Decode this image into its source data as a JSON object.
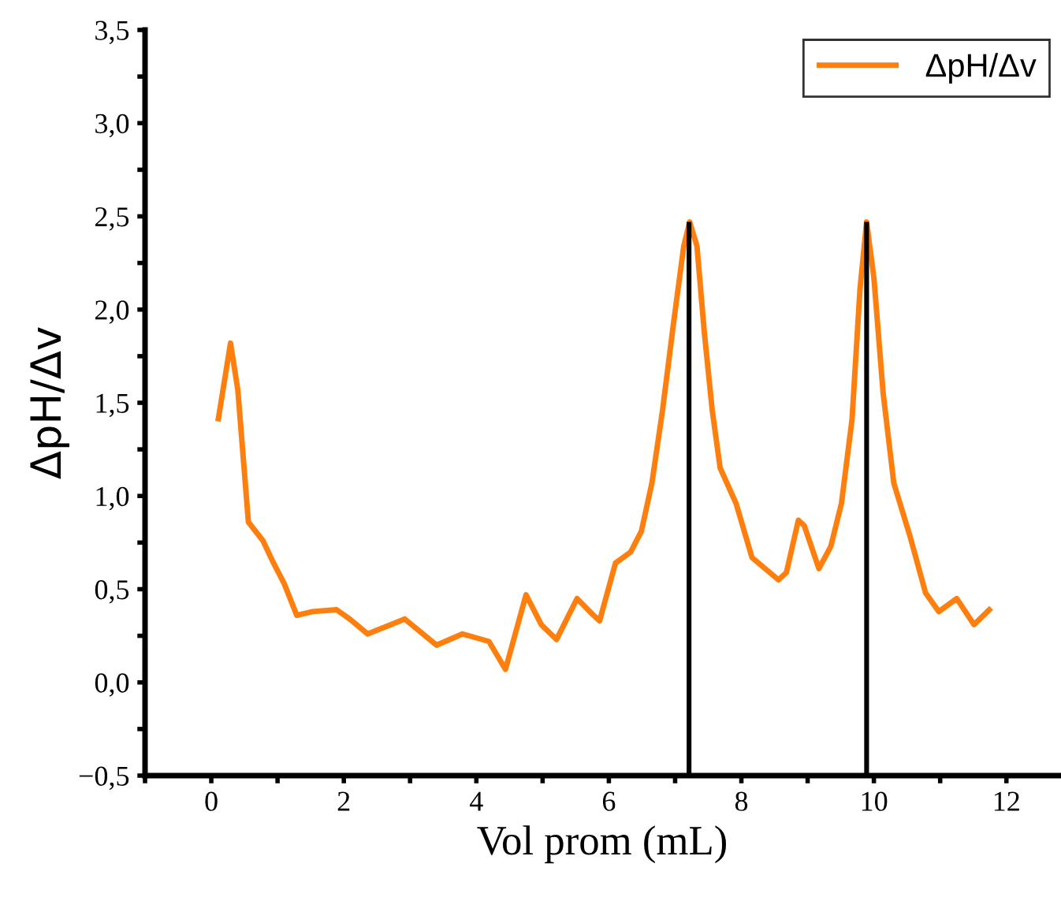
{
  "chart_data": {
    "type": "line",
    "xlabel": "Vol prom (mL)",
    "ylabel": "ΔpH/Δv",
    "legend": "top right",
    "grid": false,
    "xlim": [
      -1,
      12.8
    ],
    "ylim": [
      -0.5,
      3.5
    ],
    "xticks": [
      {
        "value": -1,
        "label": null
      },
      0,
      {
        "value": 1,
        "label": null
      },
      2,
      {
        "value": 3,
        "label": null
      },
      4,
      {
        "value": 5,
        "label": null
      },
      6,
      {
        "value": 7,
        "label": null
      },
      8,
      {
        "value": 9,
        "label": null
      },
      10,
      {
        "value": 11,
        "label": null
      },
      12
    ],
    "yticks": [
      {
        "value": -0.5,
        "label": "−0,5"
      },
      {
        "value": -0.25,
        "label": null
      },
      {
        "value": 0,
        "label": "0,0"
      },
      {
        "value": 0.25,
        "label": null
      },
      {
        "value": 0.5,
        "label": "0,5"
      },
      {
        "value": 0.75,
        "label": null
      },
      {
        "value": 1,
        "label": "1,0"
      },
      {
        "value": 1.25,
        "label": null
      },
      {
        "value": 1.5,
        "label": "1,5"
      },
      {
        "value": 1.75,
        "label": null
      },
      {
        "value": 2,
        "label": "2,0"
      },
      {
        "value": 2.25,
        "label": null
      },
      {
        "value": 2.5,
        "label": "2,5"
      },
      {
        "value": 2.75,
        "label": null
      },
      {
        "value": 3,
        "label": "3,0"
      },
      {
        "value": 3.25,
        "label": null
      },
      {
        "value": 3.5,
        "label": "3,5"
      }
    ],
    "series": [
      {
        "name": "ΔpH/Δv",
        "color": "#ff7f0e",
        "x": [
          0.1,
          0.29,
          0.4,
          0.56,
          0.78,
          0.94,
          1.1,
          1.29,
          1.53,
          1.89,
          2.09,
          2.36,
          2.92,
          3.4,
          3.79,
          4.19,
          4.44,
          4.75,
          4.98,
          5.21,
          5.52,
          5.74,
          5.86,
          6.1,
          6.33,
          6.49,
          6.65,
          6.81,
          6.97,
          7.13,
          7.22,
          7.33,
          7.44,
          7.56,
          7.68,
          7.92,
          8.16,
          8.56,
          8.68,
          8.86,
          8.95,
          9.17,
          9.35,
          9.51,
          9.67,
          9.79,
          9.89,
          10.0,
          10.14,
          10.3,
          10.54,
          10.78,
          10.98,
          11.25,
          11.51,
          11.77
        ],
        "values": [
          1.4,
          1.82,
          1.57,
          0.86,
          0.76,
          0.64,
          0.53,
          0.36,
          0.38,
          0.39,
          0.34,
          0.26,
          0.34,
          0.2,
          0.26,
          0.22,
          0.07,
          0.47,
          0.31,
          0.23,
          0.45,
          0.37,
          0.33,
          0.64,
          0.7,
          0.81,
          1.07,
          1.46,
          1.91,
          2.34,
          2.47,
          2.34,
          1.88,
          1.46,
          1.15,
          0.96,
          0.67,
          0.55,
          0.59,
          0.87,
          0.84,
          0.61,
          0.73,
          0.96,
          1.41,
          2.11,
          2.47,
          2.17,
          1.55,
          1.07,
          0.79,
          0.48,
          0.38,
          0.45,
          0.31,
          0.4
        ]
      },
      {
        "color": "#000000",
        "x": [
          7.21,
          7.21
        ],
        "values": [
          -0.5,
          2.47
        ]
      },
      {
        "color": "#000000",
        "x": [
          9.89,
          9.89
        ],
        "values": [
          -0.5,
          2.47
        ]
      }
    ]
  }
}
